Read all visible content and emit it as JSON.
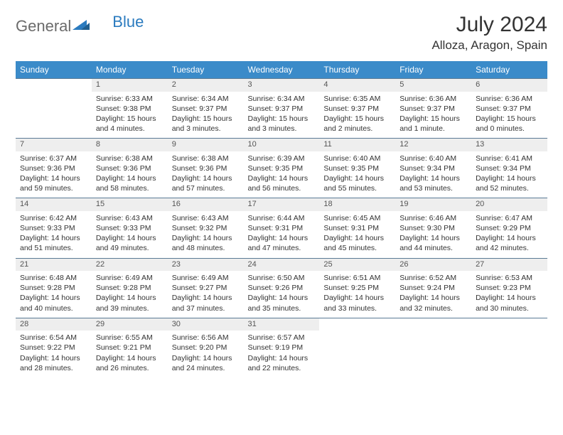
{
  "brand": {
    "part1": "General",
    "part2": "Blue"
  },
  "title": "July 2024",
  "location": "Alloza, Aragon, Spain",
  "day_header_bg": "#3b8bc9",
  "daynum_bg": "#eeeeee",
  "row_border": "#5a7a95",
  "days": [
    "Sunday",
    "Monday",
    "Tuesday",
    "Wednesday",
    "Thursday",
    "Friday",
    "Saturday"
  ],
  "weeks": [
    [
      null,
      {
        "n": "1",
        "sr": "6:33 AM",
        "ss": "9:38 PM",
        "dl": "15 hours and 4 minutes."
      },
      {
        "n": "2",
        "sr": "6:34 AM",
        "ss": "9:37 PM",
        "dl": "15 hours and 3 minutes."
      },
      {
        "n": "3",
        "sr": "6:34 AM",
        "ss": "9:37 PM",
        "dl": "15 hours and 3 minutes."
      },
      {
        "n": "4",
        "sr": "6:35 AM",
        "ss": "9:37 PM",
        "dl": "15 hours and 2 minutes."
      },
      {
        "n": "5",
        "sr": "6:36 AM",
        "ss": "9:37 PM",
        "dl": "15 hours and 1 minute."
      },
      {
        "n": "6",
        "sr": "6:36 AM",
        "ss": "9:37 PM",
        "dl": "15 hours and 0 minutes."
      }
    ],
    [
      {
        "n": "7",
        "sr": "6:37 AM",
        "ss": "9:36 PM",
        "dl": "14 hours and 59 minutes."
      },
      {
        "n": "8",
        "sr": "6:38 AM",
        "ss": "9:36 PM",
        "dl": "14 hours and 58 minutes."
      },
      {
        "n": "9",
        "sr": "6:38 AM",
        "ss": "9:36 PM",
        "dl": "14 hours and 57 minutes."
      },
      {
        "n": "10",
        "sr": "6:39 AM",
        "ss": "9:35 PM",
        "dl": "14 hours and 56 minutes."
      },
      {
        "n": "11",
        "sr": "6:40 AM",
        "ss": "9:35 PM",
        "dl": "14 hours and 55 minutes."
      },
      {
        "n": "12",
        "sr": "6:40 AM",
        "ss": "9:34 PM",
        "dl": "14 hours and 53 minutes."
      },
      {
        "n": "13",
        "sr": "6:41 AM",
        "ss": "9:34 PM",
        "dl": "14 hours and 52 minutes."
      }
    ],
    [
      {
        "n": "14",
        "sr": "6:42 AM",
        "ss": "9:33 PM",
        "dl": "14 hours and 51 minutes."
      },
      {
        "n": "15",
        "sr": "6:43 AM",
        "ss": "9:33 PM",
        "dl": "14 hours and 49 minutes."
      },
      {
        "n": "16",
        "sr": "6:43 AM",
        "ss": "9:32 PM",
        "dl": "14 hours and 48 minutes."
      },
      {
        "n": "17",
        "sr": "6:44 AM",
        "ss": "9:31 PM",
        "dl": "14 hours and 47 minutes."
      },
      {
        "n": "18",
        "sr": "6:45 AM",
        "ss": "9:31 PM",
        "dl": "14 hours and 45 minutes."
      },
      {
        "n": "19",
        "sr": "6:46 AM",
        "ss": "9:30 PM",
        "dl": "14 hours and 44 minutes."
      },
      {
        "n": "20",
        "sr": "6:47 AM",
        "ss": "9:29 PM",
        "dl": "14 hours and 42 minutes."
      }
    ],
    [
      {
        "n": "21",
        "sr": "6:48 AM",
        "ss": "9:28 PM",
        "dl": "14 hours and 40 minutes."
      },
      {
        "n": "22",
        "sr": "6:49 AM",
        "ss": "9:28 PM",
        "dl": "14 hours and 39 minutes."
      },
      {
        "n": "23",
        "sr": "6:49 AM",
        "ss": "9:27 PM",
        "dl": "14 hours and 37 minutes."
      },
      {
        "n": "24",
        "sr": "6:50 AM",
        "ss": "9:26 PM",
        "dl": "14 hours and 35 minutes."
      },
      {
        "n": "25",
        "sr": "6:51 AM",
        "ss": "9:25 PM",
        "dl": "14 hours and 33 minutes."
      },
      {
        "n": "26",
        "sr": "6:52 AM",
        "ss": "9:24 PM",
        "dl": "14 hours and 32 minutes."
      },
      {
        "n": "27",
        "sr": "6:53 AM",
        "ss": "9:23 PM",
        "dl": "14 hours and 30 minutes."
      }
    ],
    [
      {
        "n": "28",
        "sr": "6:54 AM",
        "ss": "9:22 PM",
        "dl": "14 hours and 28 minutes."
      },
      {
        "n": "29",
        "sr": "6:55 AM",
        "ss": "9:21 PM",
        "dl": "14 hours and 26 minutes."
      },
      {
        "n": "30",
        "sr": "6:56 AM",
        "ss": "9:20 PM",
        "dl": "14 hours and 24 minutes."
      },
      {
        "n": "31",
        "sr": "6:57 AM",
        "ss": "9:19 PM",
        "dl": "14 hours and 22 minutes."
      },
      null,
      null,
      null
    ]
  ],
  "labels": {
    "sunrise": "Sunrise:",
    "sunset": "Sunset:",
    "daylight": "Daylight:"
  }
}
